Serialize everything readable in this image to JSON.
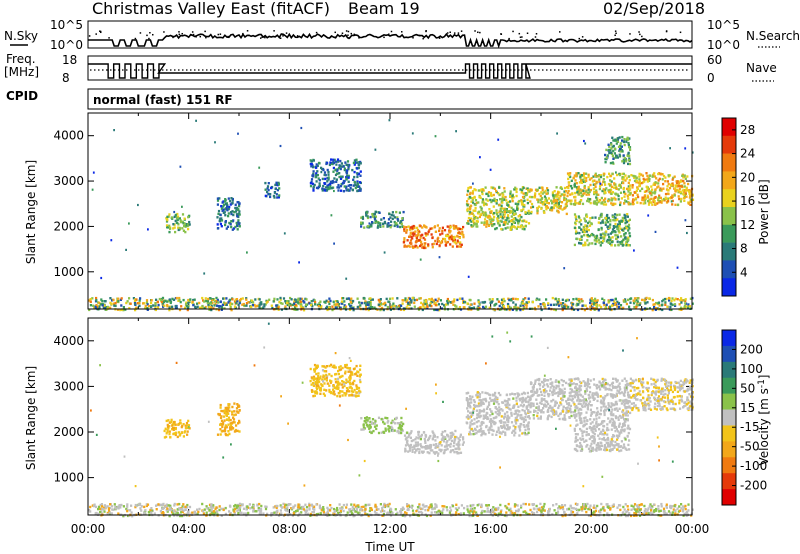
{
  "header": {
    "title": "Christmas Valley East (fitACF)",
    "beam": "Beam 19",
    "date": "02/Sep/2018"
  },
  "strips": {
    "nsky_label": "N.Sky",
    "nsearch_label": "N.Search",
    "nsky_ticks": [
      "10^5",
      "10^0"
    ],
    "nsearch_ticks": [
      "10^5",
      "10^0"
    ],
    "freq_label": "Freq.",
    "freq_unit": "[MHz]",
    "freq_ticks": [
      "18",
      "8"
    ],
    "nave_label": "Nave",
    "nave_ticks": [
      "60",
      "0"
    ],
    "cpid_label": "CPID",
    "cpid_value": "normal (fast) 151 RF"
  },
  "colors": {
    "power_scale": [
      "#0a28e6",
      "#1e4fb4",
      "#2a7a78",
      "#3a9a5a",
      "#8ac24a",
      "#e9d21e",
      "#f2a71a",
      "#f07a10",
      "#e53a0a",
      "#e00000"
    ],
    "velocity_scale": [
      "#0a28e6",
      "#1e4fb4",
      "#2a7a78",
      "#3a9a5a",
      "#8ac24a",
      "#c0c0c0",
      "#f2c41a",
      "#f2a71a",
      "#f07a10",
      "#e53a0a",
      "#e00000"
    ],
    "ground_scatter": "#c0c0c0"
  },
  "chart_data": [
    {
      "type": "heatmap",
      "panel": "power",
      "ylabel": "Slant Range [km]",
      "yticks": [
        "1000",
        "2000",
        "3000",
        "4000"
      ],
      "ylim": [
        180,
        4500
      ],
      "xlim_hours": [
        0,
        24
      ],
      "colorbar": {
        "label": "Power [dB]",
        "ticks": [
          "4",
          "8",
          "12",
          "16",
          "20",
          "24",
          "28"
        ],
        "range": [
          0,
          30
        ]
      },
      "patches": [
        {
          "t0": 3.0,
          "t1": 4.0,
          "r0": 1900,
          "r1": 2300,
          "v": 12
        },
        {
          "t0": 5.1,
          "t1": 6.0,
          "r0": 1950,
          "r1": 2650,
          "v": 7
        },
        {
          "t0": 8.8,
          "t1": 10.8,
          "r0": 2800,
          "r1": 3500,
          "v": 6
        },
        {
          "t0": 7.0,
          "t1": 7.6,
          "r0": 2650,
          "r1": 3000,
          "v": 6
        },
        {
          "t0": 10.8,
          "t1": 12.5,
          "r0": 2000,
          "r1": 2350,
          "v": 9
        },
        {
          "t0": 12.5,
          "t1": 14.9,
          "r0": 1550,
          "r1": 2050,
          "v": 22
        },
        {
          "t0": 15.0,
          "t1": 16.0,
          "r0": 2000,
          "r1": 2900,
          "v": 16
        },
        {
          "t0": 16.0,
          "t1": 17.5,
          "r0": 1950,
          "r1": 2900,
          "v": 14
        },
        {
          "t0": 17.5,
          "t1": 19.0,
          "r0": 2300,
          "r1": 2900,
          "v": 16
        },
        {
          "t0": 19.0,
          "t1": 21.5,
          "r0": 2500,
          "r1": 3200,
          "v": 16
        },
        {
          "t0": 19.3,
          "t1": 21.5,
          "r0": 1600,
          "r1": 2300,
          "v": 12
        },
        {
          "t0": 21.5,
          "t1": 24.0,
          "r0": 2500,
          "r1": 3200,
          "v": 18
        },
        {
          "t0": 20.5,
          "t1": 21.5,
          "r0": 3400,
          "r1": 4000,
          "v": 10
        },
        {
          "t0": 0.0,
          "t1": 24.0,
          "r0": 180,
          "r1": 450,
          "v": 10
        }
      ]
    },
    {
      "type": "heatmap",
      "panel": "velocity",
      "xlabel": "Time UT",
      "ylabel": "Slant Range [km]",
      "yticks": [
        "1000",
        "2000",
        "3000",
        "4000"
      ],
      "ylim": [
        180,
        4500
      ],
      "xlim_hours": [
        0,
        24
      ],
      "xticks": [
        "00:00",
        "04:00",
        "08:00",
        "12:00",
        "16:00",
        "20:00",
        "00:00"
      ],
      "colorbar": {
        "label": "Velocity [m s^-1]",
        "ticks": [
          "200",
          "100",
          "50",
          "15",
          "-15",
          "-50",
          "-100",
          "-200"
        ],
        "range": [
          -250,
          250
        ]
      },
      "patches": [
        {
          "t0": 3.0,
          "t1": 4.0,
          "r0": 1900,
          "r1": 2300,
          "v": -60
        },
        {
          "t0": 5.1,
          "t1": 6.0,
          "r0": 1950,
          "r1": 2650,
          "v": -80
        },
        {
          "t0": 8.8,
          "t1": 10.8,
          "r0": 2800,
          "r1": 3500,
          "v": -50
        },
        {
          "t0": 10.8,
          "t1": 12.5,
          "r0": 2000,
          "r1": 2350,
          "v": 40
        },
        {
          "t0": 12.5,
          "t1": 14.9,
          "r0": 1550,
          "r1": 2050,
          "v": 0
        },
        {
          "t0": 15.0,
          "t1": 17.5,
          "r0": 1950,
          "r1": 2900,
          "v": 0
        },
        {
          "t0": 17.5,
          "t1": 21.5,
          "r0": 2300,
          "r1": 3200,
          "v": 0
        },
        {
          "t0": 19.3,
          "t1": 21.5,
          "r0": 1600,
          "r1": 2300,
          "v": 0
        },
        {
          "t0": 21.5,
          "t1": 24.0,
          "r0": 2500,
          "r1": 3200,
          "v": -20
        },
        {
          "t0": 0.0,
          "t1": 24.0,
          "r0": 180,
          "r1": 450,
          "v": 0
        }
      ]
    }
  ]
}
